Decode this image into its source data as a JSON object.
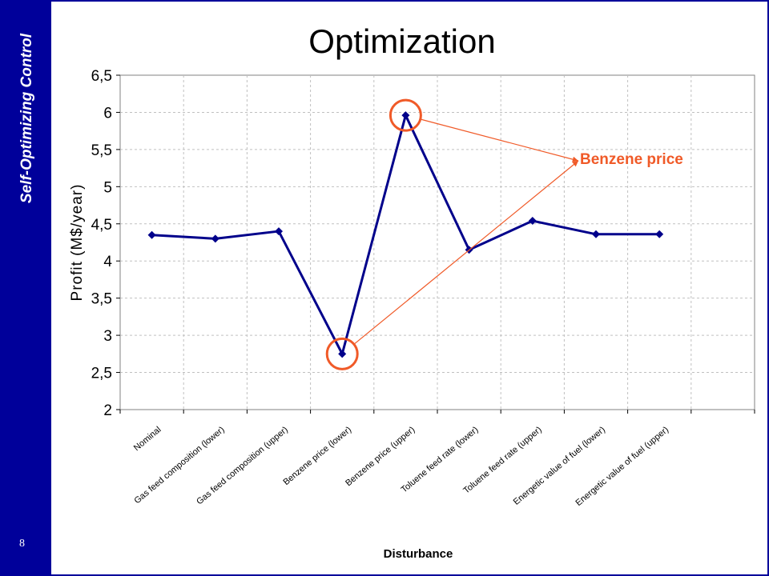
{
  "sidebar": {
    "title": "Self-Optimizing Control",
    "page_number": "8"
  },
  "colors": {
    "sidebar": "#00009a",
    "series": "#00008b",
    "annotation": "#f05a28",
    "grid": "#c0c0c0"
  },
  "chart_data": {
    "type": "line",
    "title": "Optimization",
    "xlabel": "Disturbance",
    "ylabel": "Profit (M$/year)",
    "ylim": [
      2,
      6.5
    ],
    "yticks": [
      "2",
      "2,5",
      "3",
      "3,5",
      "4",
      "4,5",
      "5",
      "5,5",
      "6",
      "6,5"
    ],
    "categories": [
      "Nominal",
      "Gas feed composition (lower)",
      "Gas feed composition (upper)",
      "Benzene price (lower)",
      "Benzene price (upper)",
      "Toluene feed rate (lower)",
      "Toluene feed rate (upper)",
      "Energetic value of fuel (lower)",
      "Energetic value of fuel (upper)"
    ],
    "series": [
      {
        "values": [
          4.35,
          4.3,
          4.4,
          2.75,
          5.96,
          4.15,
          4.54,
          4.36,
          4.36
        ]
      }
    ],
    "grid": true,
    "legend": "none",
    "annotation": {
      "text": "Benzene price",
      "highlight_indices": [
        3,
        4
      ]
    }
  }
}
